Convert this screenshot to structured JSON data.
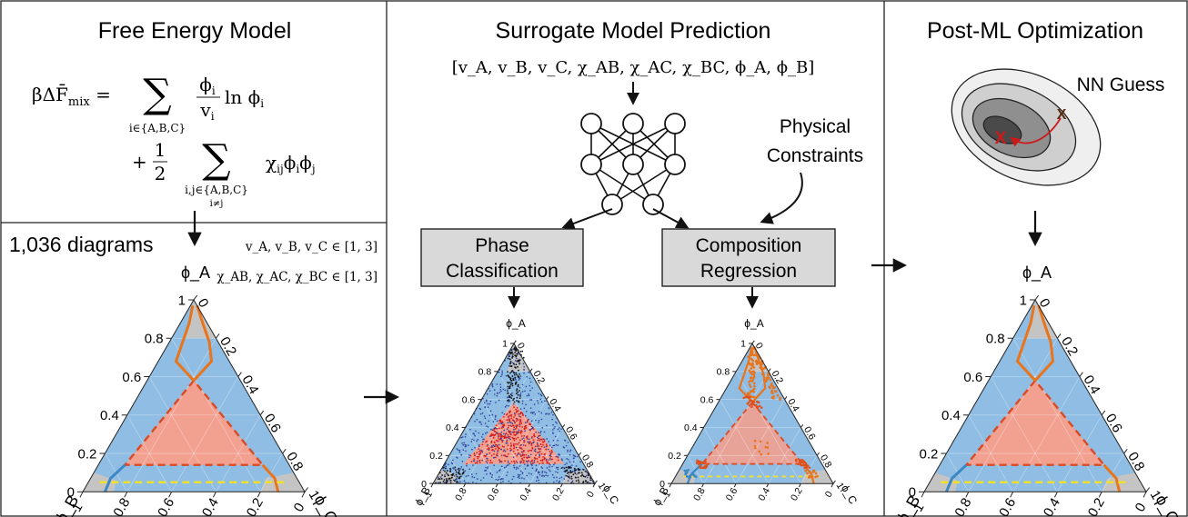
{
  "panels": {
    "free_energy": {
      "title": "Free Energy Model",
      "equation_line1": {
        "lhs": "βΔF̄",
        "lhs_sub": "mix",
        "equals": " = ",
        "sum_symbol": "∑",
        "sum_index": "i∈{A,B,C}",
        "frac_num": "ϕ",
        "frac_num_sub": "i",
        "frac_den": "v",
        "frac_den_sub": "i",
        "tail": " ln ϕ",
        "tail_sub": "i"
      },
      "equation_line2": {
        "plus": "+",
        "half_num": "1",
        "half_den": "2",
        "sum_symbol": "∑",
        "sum_index": "i,j∈{A,B,C}",
        "sum_index2": "i≠j",
        "term": "χ",
        "term_sub": "ij",
        "term2": "ϕ",
        "term2_sub": "i",
        "term3": "ϕ",
        "term3_sub": "j"
      }
    },
    "dataset": {
      "count_label": "1,036 diagrams",
      "range1": "v_A, v_B, v_C ∈ [1, 3]",
      "range2": "χ_AB, χ_AC, χ_BC ∈ [1, 3]"
    },
    "surrogate": {
      "title": "Surrogate Model Prediction",
      "inputs": "[v_A, v_B, v_C, χ_AB, χ_AC, χ_BC, ϕ_A, ϕ_B]",
      "constraints_line1": "Physical",
      "constraints_line2": "Constraints",
      "box_left_line1": "Phase",
      "box_left_line2": "Classification",
      "box_right_line1": "Composition",
      "box_right_line2": "Regression"
    },
    "post_ml": {
      "title": "Post-ML Optimization",
      "nn_guess": "NN Guess",
      "marker": "X"
    }
  },
  "ternary": {
    "axis_A": "ϕ_A",
    "axis_B": "ϕ_B",
    "axis_C": "ϕ_C",
    "left_ticks": [
      "0",
      "0.2",
      "0.4",
      "0.6",
      "0.8",
      "1"
    ],
    "right_ticks": [
      "0",
      "0.2",
      "0.4",
      "0.6",
      "0.8",
      "1"
    ],
    "bottom_ticks": [
      "1",
      "0.8",
      "0.6",
      "0.4",
      "0.2",
      "0"
    ]
  },
  "colors": {
    "blue_region": "#8fbde3",
    "red_region": "#f2a090",
    "gray_region": "#c4c4c4",
    "orange_line": "#e8741c",
    "red_dash": "#d94a26",
    "yellow_dash": "#f0e02a",
    "blue_line": "#3b88c4",
    "box_fill": "#d9d9d9",
    "arrow_red": "#cc1a1a"
  }
}
